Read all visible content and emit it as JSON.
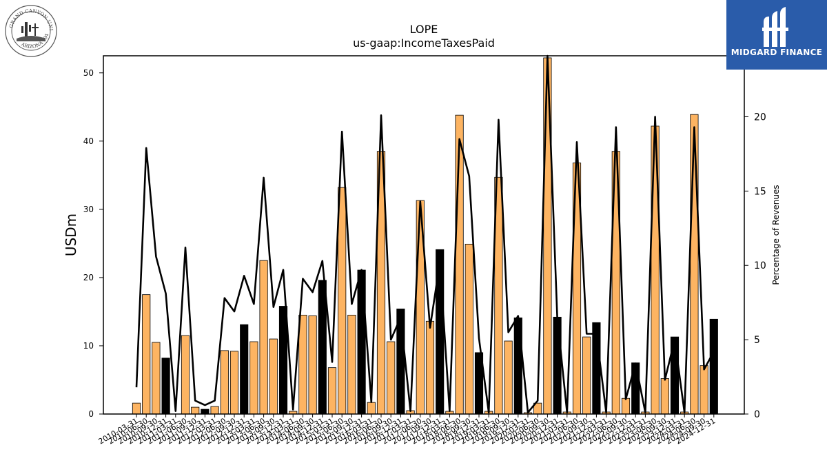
{
  "branding": {
    "left_logo": "grand-canyon-university-seal",
    "left_logo_text": "GRAND CANYON UNIVERSITY · ARIZONA 1949",
    "right_logo_text": "MIDGARD FINANCE",
    "right_logo_color": "#2a5caa"
  },
  "chart_data": {
    "type": "bar",
    "title": "LOPE",
    "subtitle": "us-gaap:IncomeTaxesPaid",
    "ylabel": "USDm",
    "ylabel_right": "Percentage of Revenues",
    "ylim": [
      0,
      52.5
    ],
    "ylim_right": [
      0,
      24.1
    ],
    "yticks": [
      0,
      10,
      20,
      30,
      40,
      50
    ],
    "yticks_right": [
      0,
      5,
      10,
      15,
      20
    ],
    "colors": {
      "q4_bar": "#000000",
      "other_bar": "#fdb462",
      "line": "#000000"
    },
    "categories": [
      "2010-03-31",
      "2010-06-30",
      "2010-09-30",
      "2010-12-31",
      "2011-03-31",
      "2011-06-30",
      "2011-09-30",
      "2011-12-31",
      "2012-03-31",
      "2012-06-30",
      "2012-09-30",
      "2012-12-31",
      "2013-03-31",
      "2013-06-30",
      "2013-09-30",
      "2013-12-31",
      "2014-03-31",
      "2014-06-30",
      "2014-09-30",
      "2014-12-31",
      "2015-03-31",
      "2015-06-30",
      "2015-09-30",
      "2015-12-31",
      "2016-03-31",
      "2016-06-30",
      "2016-09-30",
      "2016-12-31",
      "2017-03-31",
      "2017-06-30",
      "2017-09-30",
      "2017-12-31",
      "2018-03-31",
      "2018-06-30",
      "2018-09-30",
      "2018-12-31",
      "2019-03-31",
      "2019-06-30",
      "2019-09-30",
      "2019-12-31",
      "2020-03-31",
      "2020-06-30",
      "2020-09-30",
      "2020-12-31",
      "2021-03-31",
      "2021-06-30",
      "2021-09-30",
      "2021-12-31",
      "2022-03-31",
      "2022-06-30",
      "2022-09-30",
      "2022-12-31",
      "2023-03-31",
      "2023-06-30",
      "2023-09-30",
      "2023-12-31",
      "2024-03-31",
      "2024-06-30",
      "2024-09-30",
      "2024-12-31"
    ],
    "tick_labels": [
      "2010-03-31",
      "2010-06-30",
      "2010-09-30",
      "2010-12-31",
      "2011-03-31",
      "2011-06-30",
      "2011-09-30",
      "2011-12-31",
      "2012-03-31",
      "2012-06-30",
      "2012-09-30",
      "2012-12-31",
      "2013-03-31",
      "2013-06-30",
      "2013-09-30",
      "2013-12-31",
      "2014-03-31",
      "2014-06-30",
      "2014-09-30",
      "2014-12-31",
      "2015-03-31",
      "2015-06-30",
      "2015-09-30",
      "2015-12-31",
      "2016-03-31",
      "2016-06-30",
      "2016-09-30",
      "2016-12-31",
      "2017-03-31",
      "2017-06-30",
      "2017-09-30",
      "2017-12-31",
      "2018-03-31",
      "2018-06-30",
      "2018-09-30",
      "2018-12-31",
      "2019-03-31",
      "2019-06-30",
      "2019-09-30",
      "2019-12-31",
      "2020-03-31",
      "2020-06-30",
      "2020-09-30",
      "2020-12-31",
      "2021-03-31",
      "2021-06-30",
      "2021-09-30",
      "2021-12-31",
      "2022-03-31",
      "2022-06-30",
      "2022-09-30",
      "2022-12-31",
      "2023-03-31",
      "2023-06-30",
      "2023-09-30",
      "2023-12-31",
      "2024-03-31",
      "2024-06-30",
      "2024-09-30",
      "2024-12-31"
    ],
    "series": [
      {
        "axis": "left",
        "type": "bar",
        "values": [
          1.6,
          17.5,
          10.5,
          8.2,
          0.0,
          11.5,
          1.0,
          0.7,
          1.1,
          9.3,
          9.2,
          13.1,
          10.6,
          22.5,
          11.0,
          15.8,
          0.4,
          14.5,
          14.4,
          19.6,
          6.8,
          33.2,
          14.5,
          21.1,
          1.7,
          38.5,
          10.6,
          15.4,
          0.5,
          31.3,
          13.6,
          24.1,
          0.4,
          43.8,
          24.9,
          9.0,
          0.4,
          34.7,
          10.7,
          14.1,
          0.2,
          1.6,
          52.2,
          14.2,
          0.3,
          36.8,
          11.3,
          13.4,
          0.3,
          38.5,
          2.3,
          7.5,
          0.3,
          42.2,
          5.2,
          11.3,
          0.3,
          43.9,
          7.1,
          13.9
        ]
      },
      {
        "axis": "right",
        "type": "line",
        "values": [
          1.8,
          17.9,
          10.6,
          8.1,
          0.2,
          11.2,
          0.9,
          0.6,
          0.9,
          7.8,
          6.9,
          9.3,
          7.4,
          15.9,
          7.2,
          9.7,
          0.3,
          9.1,
          8.2,
          10.3,
          3.5,
          19.0,
          7.4,
          9.7,
          0.8,
          20.1,
          5.0,
          6.5,
          0.2,
          14.3,
          5.8,
          10.2,
          0.2,
          18.5,
          16.0,
          5.1,
          0.1,
          19.8,
          5.5,
          6.6,
          0.1,
          0.9,
          24.1,
          6.5,
          0.1,
          18.3,
          5.4,
          5.4,
          0.1,
          19.3,
          1.0,
          3.4,
          0.1,
          20.0,
          2.3,
          5.0,
          0.1,
          19.3,
          3.0,
          4.2
        ]
      }
    ]
  }
}
